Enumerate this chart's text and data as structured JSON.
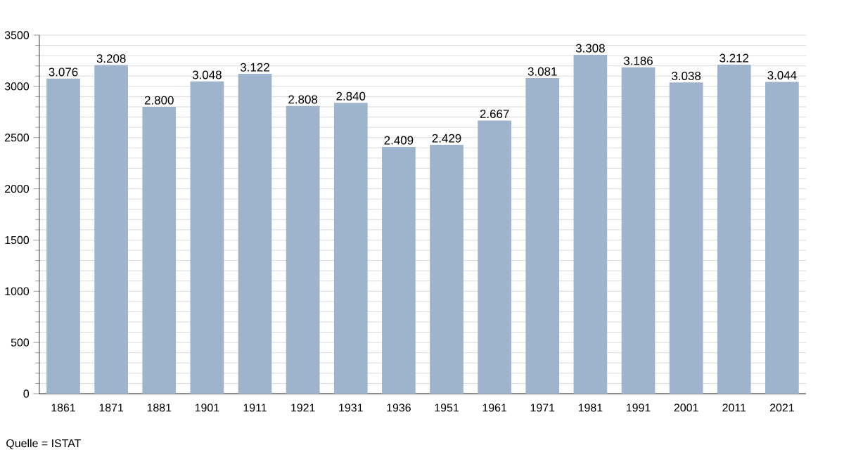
{
  "chart_data": {
    "type": "bar",
    "categories": [
      "1861",
      "1871",
      "1881",
      "1901",
      "1911",
      "1921",
      "1931",
      "1936",
      "1951",
      "1961",
      "1971",
      "1981",
      "1991",
      "2001",
      "2011",
      "2021"
    ],
    "values": [
      3076,
      3208,
      2800,
      3048,
      3122,
      2808,
      2840,
      2409,
      2429,
      2667,
      3081,
      3308,
      3186,
      3038,
      3212,
      3044
    ],
    "value_labels": [
      "3.076",
      "3.208",
      "2.800",
      "3.048",
      "3.122",
      "2.808",
      "2.840",
      "2.409",
      "2.429",
      "2.667",
      "3.081",
      "3.308",
      "3.186",
      "3.038",
      "3.212",
      "3.044"
    ],
    "color": "#9db4cc",
    "ylim": [
      0,
      3500
    ],
    "yticks": [
      0,
      500,
      1000,
      1500,
      2000,
      2500,
      3000,
      3500
    ],
    "grid": "y",
    "annotations": [
      "Quelle = ISTAT"
    ]
  }
}
